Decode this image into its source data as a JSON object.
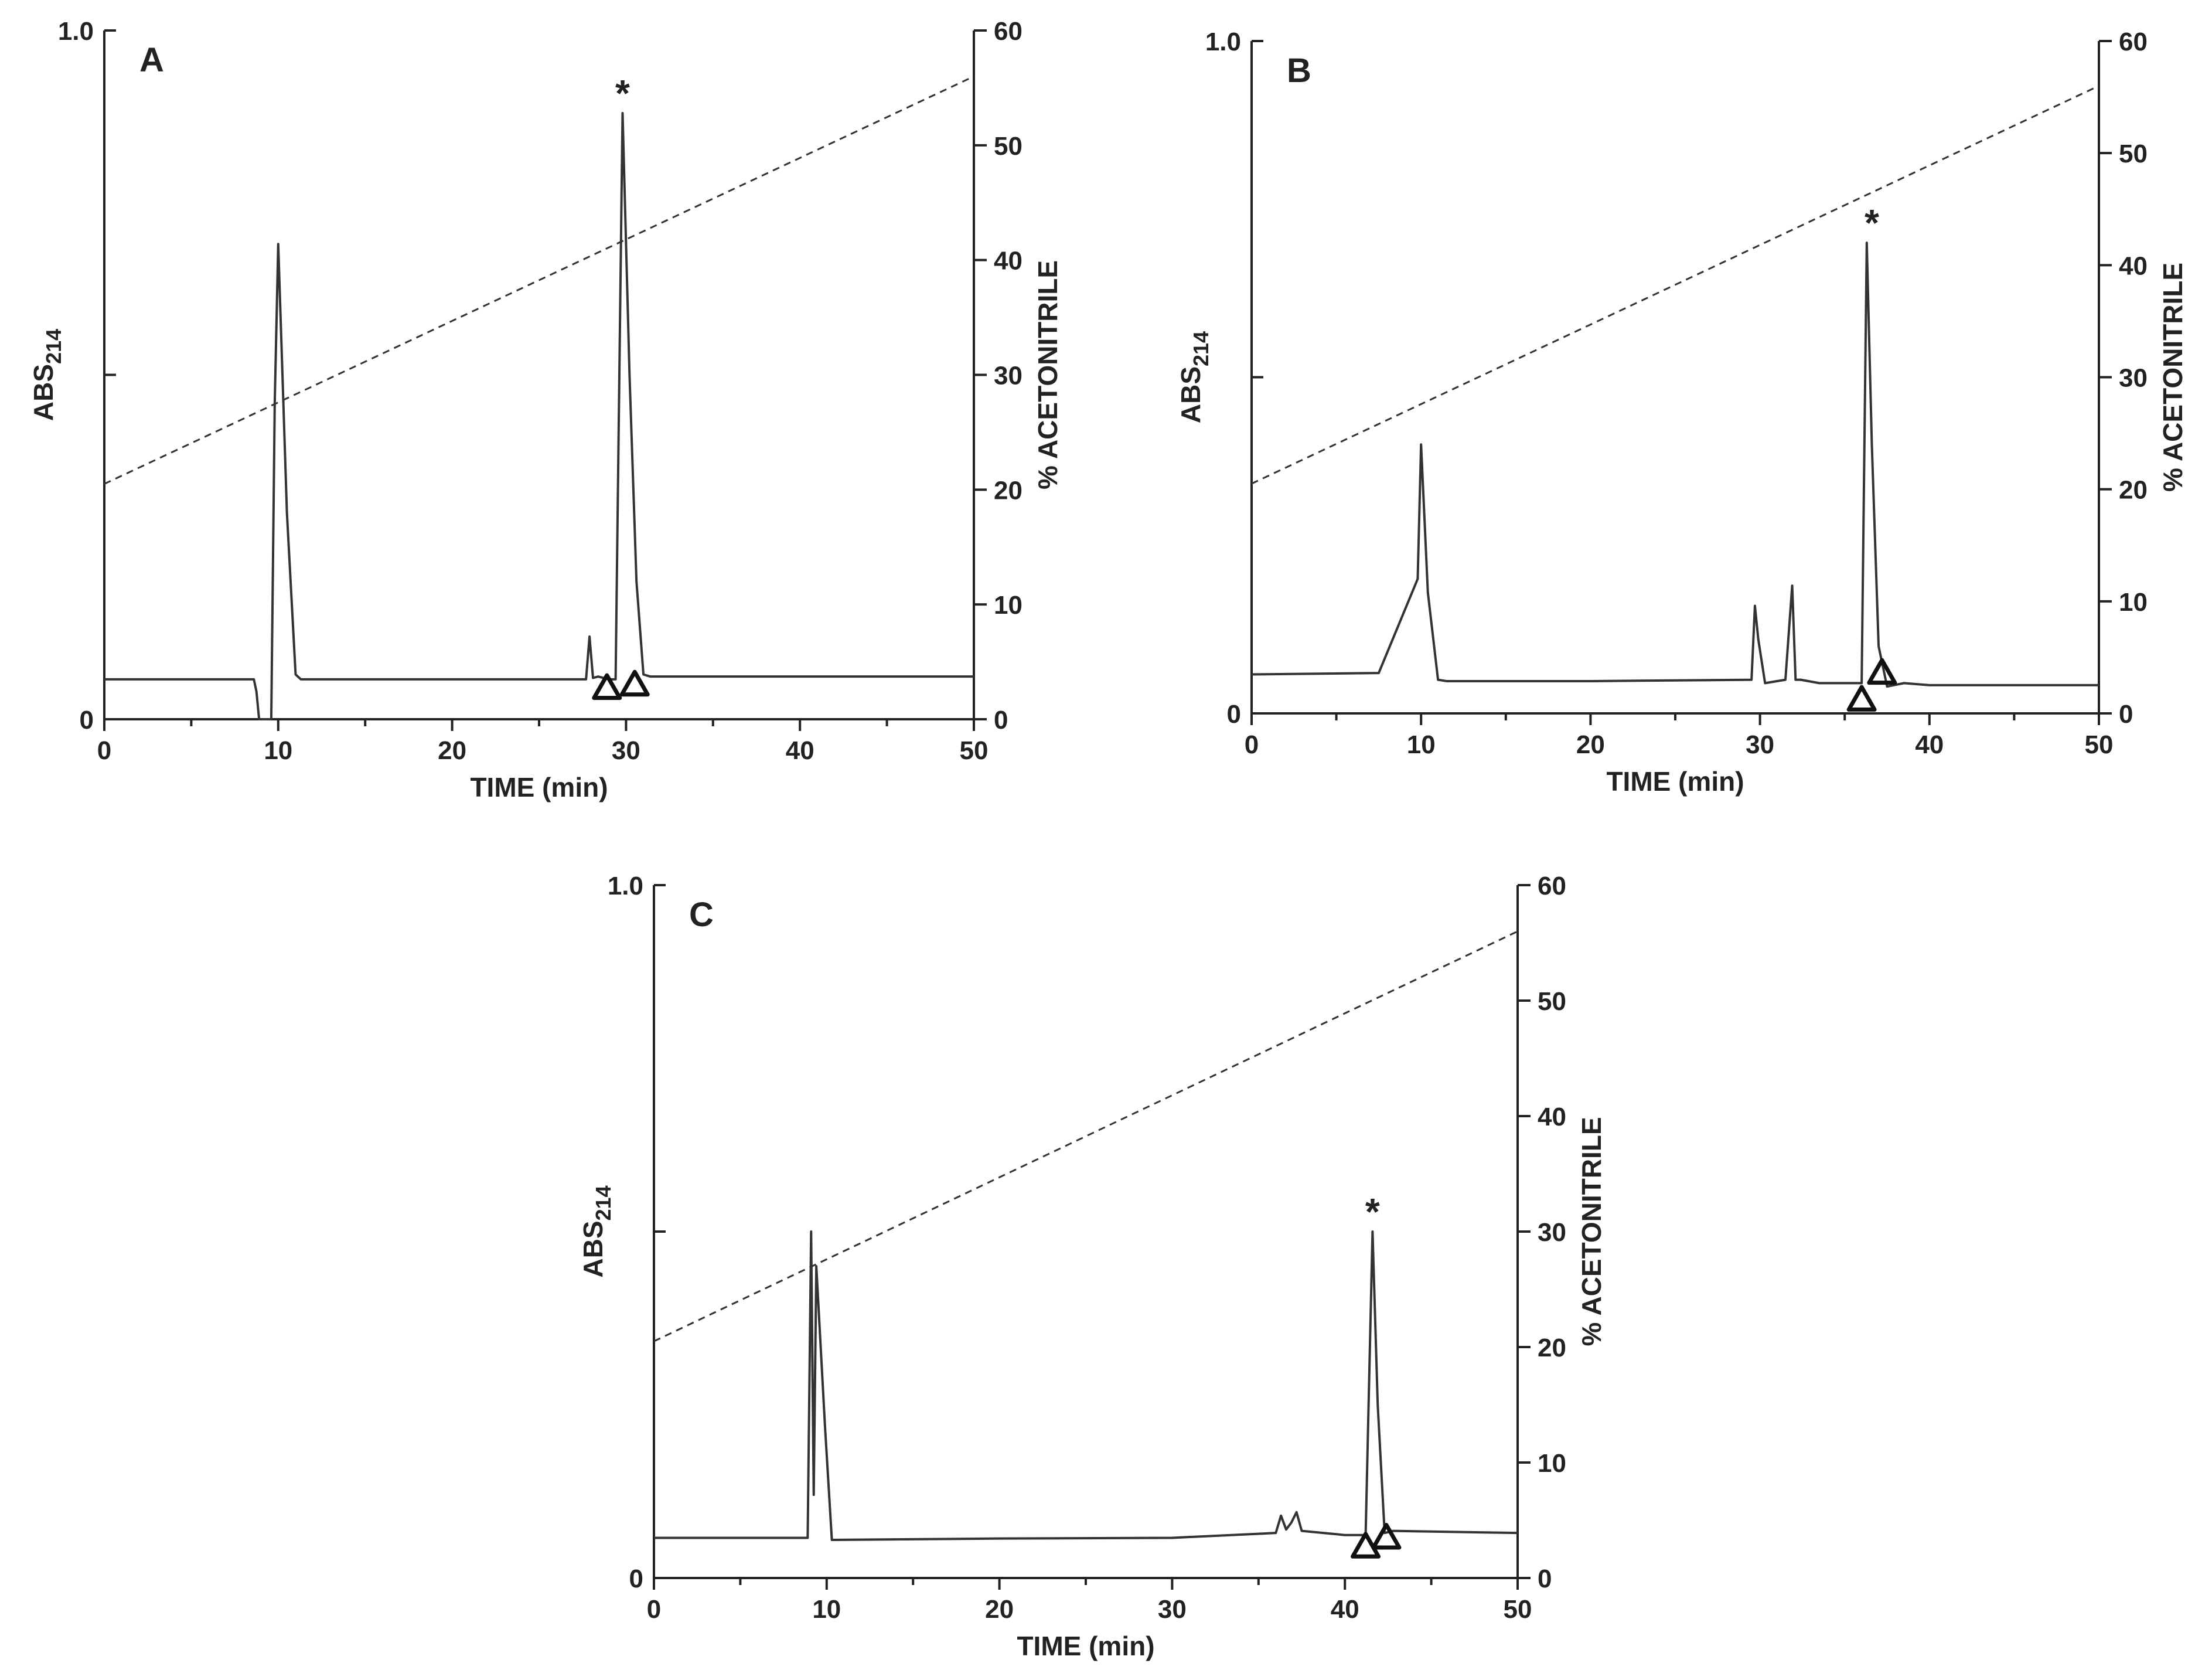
{
  "figure": {
    "colors": {
      "trace": "#333333",
      "gradient": "#333333",
      "axis": "#222222",
      "background": "#ffffff"
    }
  },
  "chart_data": [
    {
      "type": "line",
      "panel_label": "A",
      "xlabel": "TIME (min)",
      "ylabel": "ABS214",
      "ylabel_main": "ABS",
      "ylabel_sub": "214",
      "y2label": "% ACETONITRILE",
      "xlim": [
        0,
        50
      ],
      "ylim": [
        0,
        1.0
      ],
      "y2lim": [
        0,
        60
      ],
      "x_ticks": [
        0,
        10,
        20,
        30,
        40,
        50
      ],
      "y_ticks": [
        {
          "value": 0,
          "label": "0"
        },
        {
          "value": 0.5,
          "label": ""
        },
        {
          "value": 1.0,
          "label": "1.0"
        }
      ],
      "y2_ticks": [
        0,
        10,
        20,
        30,
        40,
        50,
        60
      ],
      "absorbance": {
        "x": [
          0,
          8.6,
          8.75,
          8.9,
          9.6,
          9.8,
          10.0,
          10.5,
          11.0,
          11.3,
          20,
          27.7,
          27.9,
          28.1,
          28.4,
          29.0,
          29.4,
          29.8,
          30.2,
          30.6,
          31.0,
          31.4,
          40,
          50
        ],
        "y": [
          0.058,
          0.058,
          0.04,
          0.0,
          0.0,
          0.46,
          0.69,
          0.3,
          0.065,
          0.058,
          0.058,
          0.058,
          0.12,
          0.06,
          0.062,
          0.058,
          0.058,
          0.88,
          0.5,
          0.2,
          0.065,
          0.062,
          0.062,
          0.062
        ]
      },
      "gradient": {
        "x": [
          0,
          50
        ],
        "y": [
          20.5,
          56
        ]
      },
      "peak_markers": [
        {
          "x": 29.8,
          "y": 0.88,
          "symbol": "*"
        }
      ],
      "fraction_markers": [
        {
          "x": 28.9,
          "y": 0.045
        },
        {
          "x": 30.5,
          "y": 0.05
        }
      ]
    },
    {
      "type": "line",
      "panel_label": "B",
      "xlabel": "TIME (min)",
      "ylabel": "ABS214",
      "ylabel_main": "ABS",
      "ylabel_sub": "214",
      "y2label": "% ACETONITRILE",
      "xlim": [
        0,
        50
      ],
      "ylim": [
        0,
        1.0
      ],
      "y2lim": [
        0,
        60
      ],
      "x_ticks": [
        0,
        10,
        20,
        30,
        40,
        50
      ],
      "y_ticks": [
        {
          "value": 0,
          "label": "0"
        },
        {
          "value": 0.5,
          "label": ""
        },
        {
          "value": 1.0,
          "label": "1.0"
        }
      ],
      "y2_ticks": [
        0,
        10,
        20,
        30,
        40,
        50,
        60
      ],
      "absorbance": {
        "x": [
          0,
          7.5,
          9.8,
          10.0,
          10.4,
          11.0,
          11.5,
          20,
          29.5,
          29.7,
          29.9,
          30.3,
          31.5,
          31.9,
          32.1,
          32.4,
          33.5,
          36.0,
          36.3,
          36.6,
          37.0,
          37.5,
          38.5,
          40,
          50
        ],
        "y": [
          0.058,
          0.06,
          0.2,
          0.4,
          0.18,
          0.05,
          0.048,
          0.048,
          0.05,
          0.16,
          0.11,
          0.045,
          0.05,
          0.19,
          0.05,
          0.05,
          0.045,
          0.045,
          0.7,
          0.4,
          0.1,
          0.04,
          0.045,
          0.042,
          0.042
        ]
      },
      "gradient": {
        "x": [
          0,
          50
        ],
        "y": [
          20.5,
          56
        ]
      },
      "peak_markers": [
        {
          "x": 36.6,
          "y": 0.7,
          "symbol": "*"
        }
      ],
      "fraction_markers": [
        {
          "x": 36.0,
          "y": 0.02
        },
        {
          "x": 37.2,
          "y": 0.06
        }
      ]
    },
    {
      "type": "line",
      "panel_label": "C",
      "xlabel": "TIME (min)",
      "ylabel": "ABS214",
      "ylabel_main": "ABS",
      "ylabel_sub": "214",
      "y2label": "% ACETONITRILE",
      "xlim": [
        0,
        50
      ],
      "ylim": [
        0,
        1.0
      ],
      "y2lim": [
        0,
        60
      ],
      "x_ticks": [
        0,
        10,
        20,
        30,
        40,
        50
      ],
      "y_ticks": [
        {
          "value": 0,
          "label": "0"
        },
        {
          "value": 0.5,
          "label": ""
        },
        {
          "value": 1.0,
          "label": "1.0"
        }
      ],
      "y2_ticks": [
        0,
        10,
        20,
        30,
        40,
        50,
        60
      ],
      "absorbance": {
        "x": [
          0,
          8.9,
          9.1,
          9.25,
          9.4,
          9.9,
          10.3,
          20,
          30,
          36.0,
          36.3,
          36.6,
          36.9,
          37.2,
          37.5,
          40,
          41.2,
          41.6,
          41.9,
          42.3,
          42.8,
          50
        ],
        "y": [
          0.058,
          0.058,
          0.5,
          0.12,
          0.45,
          0.22,
          0.055,
          0.057,
          0.058,
          0.065,
          0.09,
          0.07,
          0.08,
          0.095,
          0.068,
          0.062,
          0.062,
          0.5,
          0.25,
          0.065,
          0.068,
          0.065
        ]
      },
      "gradient": {
        "x": [
          0,
          50
        ],
        "y": [
          20.5,
          56
        ]
      },
      "peak_markers": [
        {
          "x": 41.6,
          "y": 0.5,
          "symbol": "*"
        }
      ],
      "fraction_markers": [
        {
          "x": 41.2,
          "y": 0.045
        },
        {
          "x": 42.4,
          "y": 0.058
        }
      ]
    }
  ]
}
